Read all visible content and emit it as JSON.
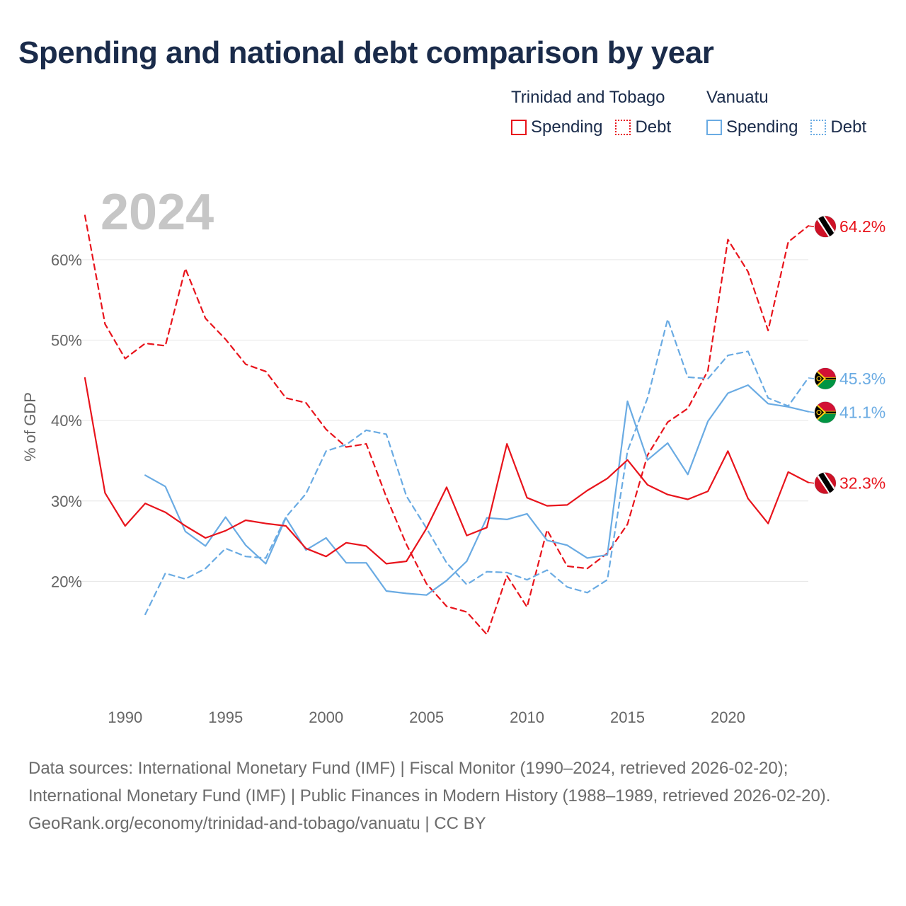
{
  "title": "Spending and national debt comparison by year",
  "legend": {
    "groups": [
      {
        "name": "Trinidad and Tobago",
        "color": "#e8141c",
        "items": [
          {
            "label": "Spending",
            "style": "solid"
          },
          {
            "label": "Debt",
            "style": "dotted"
          }
        ]
      },
      {
        "name": "Vanuatu",
        "color": "#6aabe3",
        "items": [
          {
            "label": "Spending",
            "style": "solid"
          },
          {
            "label": "Debt",
            "style": "dotted"
          }
        ]
      }
    ]
  },
  "chart_data": {
    "type": "line",
    "year_label": "2024",
    "ylabel": "% of GDP",
    "xlim": [
      1988,
      2024
    ],
    "ylim": [
      10,
      68
    ],
    "x_ticks": [
      1990,
      1995,
      2000,
      2005,
      2010,
      2015,
      2020
    ],
    "y_ticks": [
      20,
      30,
      40,
      50,
      60
    ],
    "y_tick_labels": [
      "20%",
      "30%",
      "40%",
      "50%",
      "60%"
    ],
    "grid": true,
    "series": [
      {
        "name": "Trinidad and Tobago Debt",
        "country": "Trinidad and Tobago",
        "metric": "Debt",
        "color": "#e8141c",
        "dashed": true,
        "start_year": 1988,
        "values": [
          65.5,
          52.0,
          47.7,
          49.6,
          49.3,
          58.9,
          52.7,
          50.1,
          47.0,
          46.1,
          42.8,
          42.2,
          38.9,
          36.7,
          37.1,
          30.5,
          24.6,
          19.7,
          16.9,
          16.2,
          13.4,
          20.7,
          16.8,
          26.4,
          21.9,
          21.6,
          23.5,
          27.1,
          35.7,
          39.8,
          41.5,
          46.2,
          62.5,
          58.5,
          51.2,
          62.2,
          64.2
        ],
        "end_label": "64.2%"
      },
      {
        "name": "Vanuatu Debt",
        "country": "Vanuatu",
        "metric": "Debt",
        "color": "#6aabe3",
        "dashed": true,
        "start_year": 1991,
        "values": [
          15.9,
          21.0,
          20.3,
          21.6,
          24.1,
          23.1,
          22.9,
          28.0,
          30.9,
          36.2,
          37.0,
          38.8,
          38.3,
          30.6,
          26.6,
          22.3,
          19.6,
          21.2,
          21.1,
          20.2,
          21.4,
          19.3,
          18.6,
          20.2,
          36.2,
          42.8,
          52.6,
          45.4,
          45.2,
          48.1,
          48.6,
          42.8,
          41.8,
          45.3
        ],
        "end_label": "45.3%"
      },
      {
        "name": "Vanuatu Spending",
        "country": "Vanuatu",
        "metric": "Spending",
        "color": "#6aabe3",
        "dashed": false,
        "start_year": 1991,
        "values": [
          33.2,
          31.8,
          26.2,
          24.4,
          28.0,
          24.5,
          22.2,
          27.9,
          23.9,
          25.4,
          22.3,
          22.3,
          18.8,
          18.5,
          18.3,
          20.1,
          22.5,
          27.9,
          27.7,
          28.4,
          25.1,
          24.5,
          22.9,
          23.3,
          42.4,
          35.1,
          37.2,
          33.3,
          39.9,
          43.4,
          44.4,
          42.1,
          41.7,
          41.1
        ],
        "end_label": "41.1%"
      },
      {
        "name": "Trinidad and Tobago Spending",
        "country": "Trinidad and Tobago",
        "metric": "Spending",
        "color": "#e8141c",
        "dashed": false,
        "start_year": 1988,
        "values": [
          45.3,
          31.0,
          26.9,
          29.7,
          28.6,
          26.9,
          25.4,
          26.3,
          27.6,
          27.2,
          26.9,
          24.1,
          23.1,
          24.8,
          24.4,
          22.2,
          22.5,
          26.6,
          31.7,
          25.7,
          26.7,
          37.1,
          30.4,
          29.4,
          29.5,
          31.3,
          32.8,
          35.1,
          32.0,
          30.8,
          30.2,
          31.2,
          36.2,
          30.3,
          27.2,
          33.6,
          32.3
        ],
        "end_label": "32.3%"
      }
    ]
  },
  "footer": {
    "sources": "Data sources: International Monetary Fund (IMF) | Fiscal Monitor (1990–2024, retrieved 2026-02-20); International Monetary Fund (IMF) | Public Finances in Modern History (1988–1989, retrieved 2026-02-20).",
    "credit": "GeoRank.org/economy/trinidad-and-tobago/vanuatu | CC BY"
  }
}
